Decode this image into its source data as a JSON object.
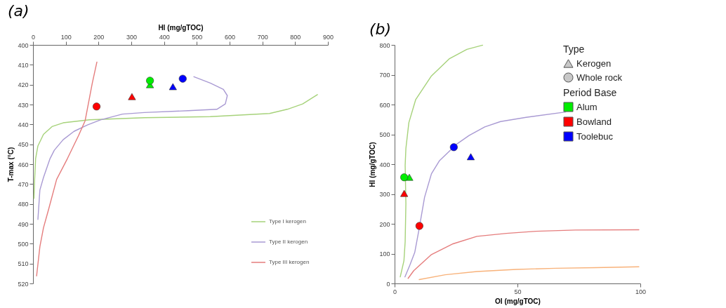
{
  "chart_data": [
    {
      "type": "scatter",
      "title": "(a)",
      "xlabel": "HI (mg/gTOC)",
      "ylabel": "T-max (°C)",
      "xlim": [
        0,
        900
      ],
      "xticks": [
        0,
        100,
        200,
        300,
        400,
        500,
        600,
        700,
        800,
        900
      ],
      "ylim": [
        520,
        400
      ],
      "yticks": [
        400,
        410,
        420,
        430,
        440,
        450,
        460,
        470,
        480,
        490,
        500,
        510,
        520
      ],
      "legend": "bottom right",
      "series": [
        {
          "type": "line",
          "name": "Type I kerogen",
          "color": "#a6d27a",
          "x": [
            868,
            823,
            776,
            722,
            541,
            340,
            172,
            92,
            58,
            32,
            15,
            8,
            5,
            3
          ],
          "values": [
            425,
            429.7,
            432.4,
            434.5,
            436.1,
            436.6,
            437.7,
            439.2,
            441.1,
            445,
            450.8,
            457.2,
            467.7,
            477.2
          ]
        },
        {
          "type": "line",
          "name": "Type II kerogen",
          "color": "#a99ad3",
          "x": [
            491,
            541,
            581,
            593,
            587,
            561,
            474,
            340,
            273,
            206,
            166,
            125,
            92,
            65,
            52,
            32,
            21,
            15
          ],
          "values": [
            416,
            419.2,
            422.4,
            425.5,
            429.7,
            432.4,
            433.1,
            434,
            434.8,
            437.7,
            440.3,
            443.5,
            447.7,
            453,
            457.2,
            466.7,
            473,
            487.8
          ]
        },
        {
          "type": "line",
          "name": "Type III kerogen",
          "color": "#e57d7d",
          "x": [
            195,
            181,
            159,
            139,
            105,
            72,
            48,
            32,
            21,
            11
          ],
          "values": [
            408.6,
            419.2,
            438.2,
            445.6,
            457.2,
            467.7,
            482.5,
            492,
            501.5,
            516.2
          ]
        },
        {
          "type": "scatter",
          "color": "#00ee00",
          "x": [
            357,
            357
          ],
          "values": [
            420,
            418
          ],
          "marker": [
            "triangle",
            "circle"
          ]
        },
        {
          "type": "scatter",
          "color": "#ff0000",
          "x": [
            302,
            194
          ],
          "values": [
            426,
            431
          ],
          "marker": [
            "triangle",
            "circle"
          ]
        },
        {
          "type": "scatter",
          "color": "#0000ff",
          "x": [
            427,
            457
          ],
          "values": [
            421,
            417
          ],
          "marker": [
            "triangle",
            "circle"
          ]
        }
      ]
    },
    {
      "type": "scatter",
      "title": "(b)",
      "xlabel": "OI (mg/gTOC)",
      "ylabel": "HI (mg/gTOC)",
      "xlim": [
        0,
        100
      ],
      "xticks": [
        0,
        50,
        100
      ],
      "ylim": [
        0,
        800
      ],
      "yticks": [
        0,
        100,
        200,
        300,
        400,
        500,
        600,
        700,
        800
      ],
      "legend": "top right",
      "legend_title": [
        "Type",
        "Period Base"
      ],
      "annotations": [
        "Kerogen",
        "Whole rock"
      ],
      "series": [
        {
          "type": "line",
          "color": "#a6d27a",
          "x": [
            2.3,
            3.8,
            4.3,
            4.6,
            4.3,
            4.6,
            5.8,
            8.6,
            15,
            22.2,
            29.4,
            35.8
          ],
          "values": [
            22,
            76,
            140,
            268,
            396,
            453,
            539,
            617,
            696,
            753,
            785,
            799
          ]
        },
        {
          "type": "line",
          "color": "#a99ad3",
          "x": [
            4.2,
            6.2,
            8.2,
            9.8,
            12.2,
            15,
            18.2,
            25.4,
            30.3,
            36.7,
            43.1,
            53.5,
            69.6
          ],
          "values": [
            22,
            61,
            104,
            175,
            289,
            368,
            411,
            468,
            496,
            525,
            543,
            557,
            575
          ]
        },
        {
          "type": "line",
          "color": "#e57d7d",
          "x": [
            5.5,
            7.8,
            15,
            23.8,
            33.5,
            45.5,
            57.5,
            73.6,
            99.4
          ],
          "values": [
            17,
            43,
            97,
            133,
            158,
            168,
            175,
            179,
            180
          ]
        },
        {
          "type": "line",
          "color": "#f8b27a",
          "x": [
            10,
            20.6,
            33.5,
            49.5,
            65.6,
            81.6,
            99.4
          ],
          "values": [
            13,
            29,
            40,
            47,
            51,
            53,
            56
          ]
        },
        {
          "type": "scatter",
          "name": "Alum",
          "color": "#00ee00",
          "x": [
            6.0,
            3.9
          ],
          "values": [
            356,
            356
          ],
          "marker": [
            "triangle",
            "circle"
          ]
        },
        {
          "type": "scatter",
          "name": "Bowland",
          "color": "#ff0000",
          "x": [
            3.9,
            10.1
          ],
          "values": [
            302,
            193
          ],
          "marker": [
            "triangle",
            "circle"
          ]
        },
        {
          "type": "scatter",
          "name": "Toolebuc",
          "color": "#0000ff",
          "x": [
            31.0,
            24.1
          ],
          "values": [
            425,
            457
          ],
          "marker": [
            "triangle",
            "circle"
          ]
        }
      ]
    }
  ]
}
